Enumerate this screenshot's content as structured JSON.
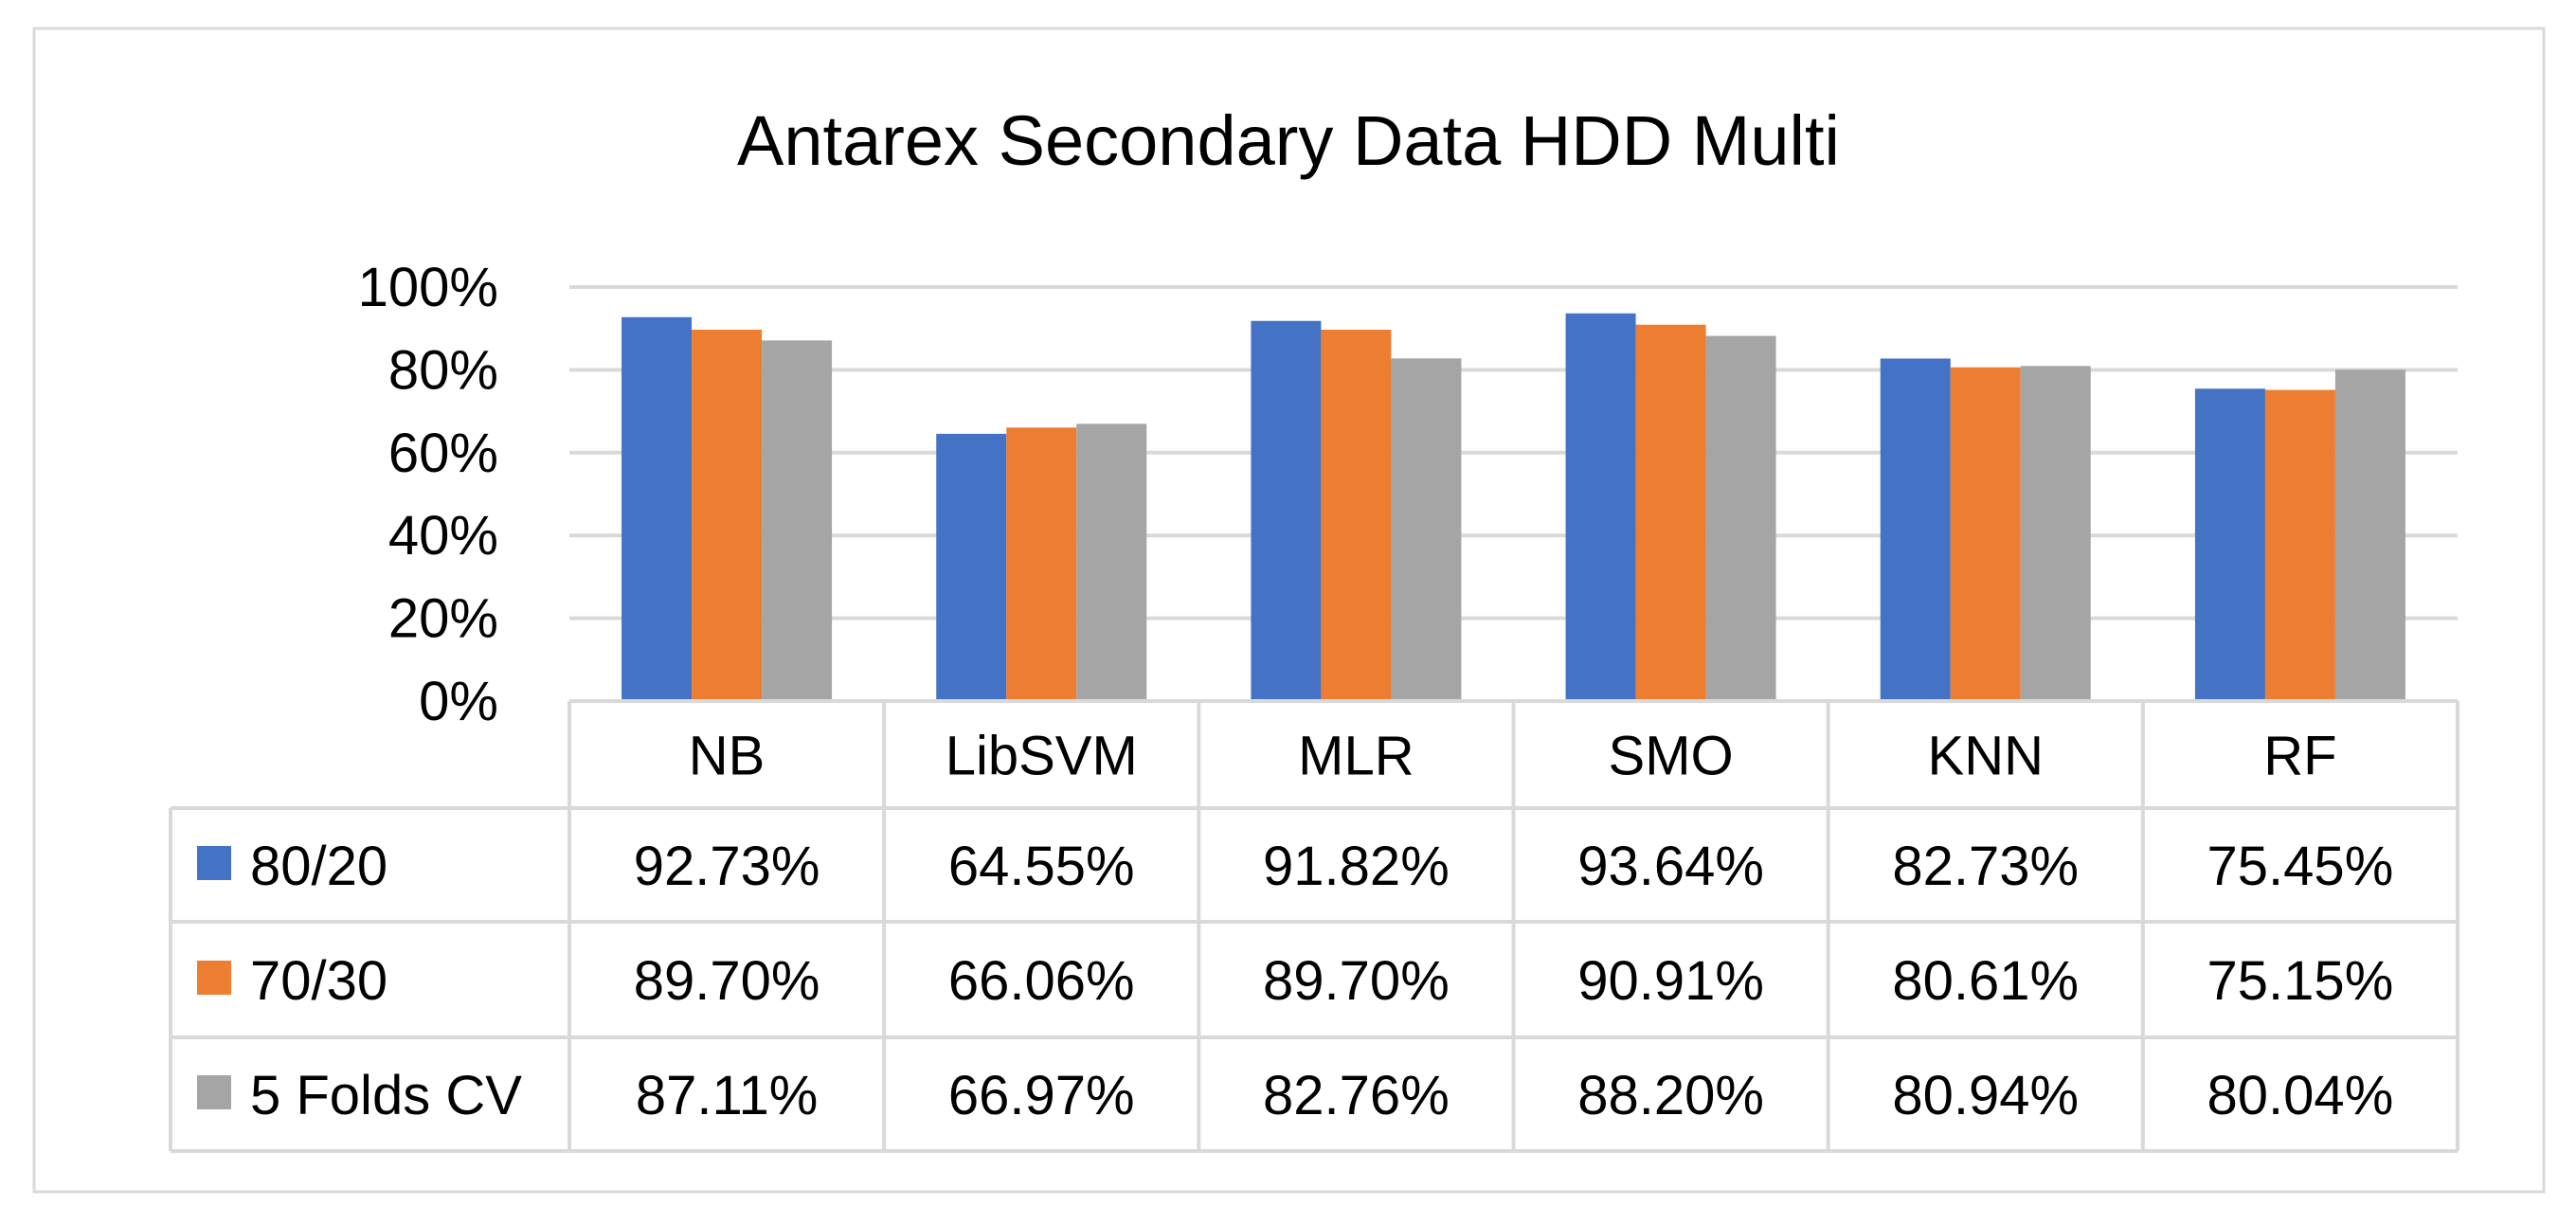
{
  "chart_data": {
    "type": "bar",
    "title": "Antarex Secondary Data HDD Multi",
    "categories": [
      "NB",
      "LibSVM",
      "MLR",
      "SMO",
      "KNN",
      "RF"
    ],
    "ylim": [
      0,
      100
    ],
    "yticks": [
      0,
      20,
      40,
      60,
      80,
      100
    ],
    "ytick_labels": [
      "0%",
      "20%",
      "40%",
      "60%",
      "80%",
      "100%"
    ],
    "grid": true,
    "legend": "data-table-left",
    "series": [
      {
        "name": "80/20",
        "color": "#4472C4",
        "values": [
          92.73,
          64.55,
          91.82,
          93.64,
          82.73,
          75.45
        ],
        "labels": [
          "92.73%",
          "64.55%",
          "91.82%",
          "93.64%",
          "82.73%",
          "75.45%"
        ]
      },
      {
        "name": "70/30",
        "color": "#ED7D31",
        "values": [
          89.7,
          66.06,
          89.7,
          90.91,
          80.61,
          75.15
        ],
        "labels": [
          "89.70%",
          "66.06%",
          "89.70%",
          "90.91%",
          "80.61%",
          "75.15%"
        ]
      },
      {
        "name": "5 Folds CV",
        "color": "#A5A5A5",
        "values": [
          87.11,
          66.97,
          82.76,
          88.2,
          80.94,
          80.04
        ],
        "labels": [
          "87.11%",
          "66.97%",
          "82.76%",
          "88.20%",
          "80.94%",
          "80.04%"
        ]
      }
    ],
    "colors": {
      "gridline": "#D9D9D9",
      "frame": "#D9D9D9",
      "text": "#000000"
    }
  }
}
